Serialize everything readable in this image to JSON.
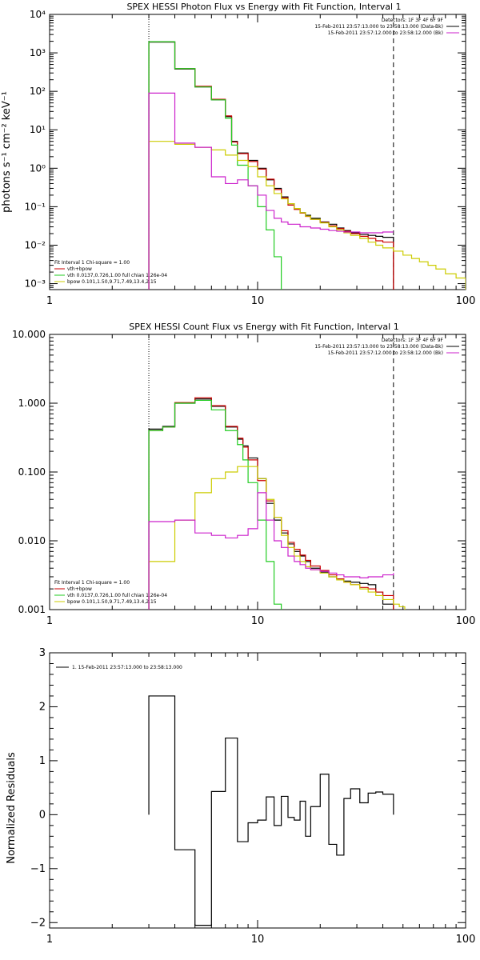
{
  "chart_data": [
    {
      "type": "line",
      "title": "SPEX HESSI Photon Flux vs Energy with Fit Function, Interval 1",
      "ylabel": "photons s⁻¹ cm⁻² keV⁻¹",
      "xlabel": "",
      "xscale": "log",
      "yscale": "log",
      "xlim": [
        1,
        100
      ],
      "ylim": [
        0.0007,
        10000
      ],
      "x_tick_labels": [
        "1",
        "10",
        "100"
      ],
      "y_ticks": [
        0.001,
        0.01,
        0.1,
        1,
        10,
        100,
        1000,
        10000
      ],
      "y_tick_labels": [
        "10⁻³",
        "10⁻²",
        "10⁻¹",
        "10⁰",
        "10¹",
        "10²",
        "10³",
        "10⁴"
      ],
      "vlines": [
        {
          "x": 3,
          "style": "dotted"
        },
        {
          "x": 45,
          "style": "dashed"
        }
      ],
      "legend_top": {
        "position": "top-right",
        "entries": [
          {
            "text": "Detectors: 1F 3F 4F 6F 9F",
            "color": ""
          },
          {
            "text": "15-Feb-2011 23:57:13.000 to 23:58:13.000 (Data-Bk)",
            "color": "#000000"
          },
          {
            "text": "15-Feb-2011 23:57:12.000 to 23:58:12.000 (Bk)",
            "color": "#cc22cc"
          }
        ]
      },
      "legend_bottom": {
        "position": "bottom-left",
        "entries": [
          {
            "text": "Fit Interval 1     Chi-square = 1.00",
            "color": "#000000"
          },
          {
            "text": "vth+bpow",
            "color": "#cc0000"
          },
          {
            "text": "vth 0.0137,0.726,1.00  full chian 1.26e-04",
            "color": "#22cc22"
          },
          {
            "text": "bpow 0.101,1.50,9.71,7.49,13.4,2.15",
            "color": "#cccc00"
          }
        ]
      },
      "series": [
        {
          "color": "#000000",
          "edges": [
            3,
            4,
            5,
            6,
            7,
            7.5,
            8,
            9,
            10,
            11,
            12,
            13,
            14,
            15,
            16,
            17,
            18,
            20,
            22,
            24,
            26,
            28,
            31,
            34,
            37,
            40,
            45
          ],
          "values": [
            1900,
            380,
            130,
            60,
            22,
            5,
            2.5,
            1.6,
            1.0,
            0.5,
            0.3,
            0.18,
            0.12,
            0.09,
            0.07,
            0.06,
            0.05,
            0.04,
            0.035,
            0.028,
            0.024,
            0.021,
            0.019,
            0.018,
            0.017,
            0.016
          ]
        },
        {
          "color": "#cc0000",
          "edges": [
            3,
            4,
            5,
            6,
            7,
            7.5,
            8,
            9,
            10,
            11,
            12,
            13,
            14,
            15,
            16,
            17,
            18,
            20,
            22,
            24,
            26,
            28,
            31,
            34,
            37,
            40,
            45
          ],
          "values": [
            1950,
            390,
            135,
            62,
            23,
            4.8,
            2.4,
            1.5,
            0.95,
            0.52,
            0.28,
            0.17,
            0.11,
            0.085,
            0.068,
            0.056,
            0.047,
            0.039,
            0.032,
            0.027,
            0.023,
            0.02,
            0.017,
            0.015,
            0.013,
            0.012
          ]
        },
        {
          "color": "#22cc22",
          "edges": [
            3,
            4,
            5,
            6,
            7,
            7.5,
            8,
            9,
            10,
            11,
            12,
            13
          ],
          "values": [
            1950,
            390,
            130,
            60,
            20,
            4,
            1.2,
            0.35,
            0.1,
            0.025,
            0.005
          ]
        },
        {
          "color": "#cccc00",
          "edges": [
            3,
            4,
            5,
            6,
            7,
            8,
            9,
            10,
            11,
            12,
            13,
            14,
            15,
            16,
            17,
            18,
            20,
            22,
            24,
            26,
            28,
            31,
            34,
            37,
            40,
            45,
            50,
            55,
            60,
            66,
            72,
            80,
            90,
            100
          ],
          "values": [
            5,
            4.2,
            3.5,
            3,
            2.2,
            1.6,
            1.1,
            0.6,
            0.35,
            0.22,
            0.16,
            0.12,
            0.09,
            0.07,
            0.057,
            0.047,
            0.038,
            0.03,
            0.025,
            0.021,
            0.018,
            0.015,
            0.012,
            0.01,
            0.0085,
            0.007,
            0.0055,
            0.0045,
            0.0037,
            0.003,
            0.0024,
            0.0018,
            0.0014
          ]
        },
        {
          "color": "#cc22cc",
          "edges": [
            3,
            4,
            5,
            6,
            7,
            8,
            9,
            10,
            11,
            12,
            13,
            14,
            15,
            16,
            17,
            18,
            20,
            22,
            24,
            26,
            28,
            31,
            34,
            37,
            40,
            45
          ],
          "values": [
            90,
            4.5,
            3.5,
            0.6,
            0.4,
            0.5,
            0.35,
            0.2,
            0.08,
            0.05,
            0.04,
            0.035,
            0.035,
            0.03,
            0.03,
            0.028,
            0.026,
            0.024,
            0.023,
            0.022,
            0.022,
            0.021,
            0.021,
            0.021,
            0.022,
            0.022
          ]
        }
      ]
    },
    {
      "type": "line",
      "title": "SPEX HESSI Count Flux vs Energy with Fit Function, Interval 1",
      "ylabel": "",
      "xlabel": "",
      "xscale": "log",
      "yscale": "log",
      "xlim": [
        1,
        100
      ],
      "ylim": [
        0.001,
        10
      ],
      "x_tick_labels": [
        "1",
        "10",
        "100"
      ],
      "y_ticks": [
        0.001,
        0.01,
        0.1,
        1,
        10
      ],
      "y_tick_labels": [
        "0.001",
        "0.010",
        "0.100",
        "1.000",
        "10.000"
      ],
      "vlines": [
        {
          "x": 3,
          "style": "dotted"
        },
        {
          "x": 45,
          "style": "dashed"
        }
      ],
      "legend_top": {
        "position": "top-right",
        "entries": [
          {
            "text": "Detectors: 1F 3F 4F 6F 9F",
            "color": ""
          },
          {
            "text": "15-Feb-2011 23:57:13.000 to 23:58:13.000 (Data-Bk)",
            "color": "#000000"
          },
          {
            "text": "15-Feb-2011 23:57:12.000 to 23:58:12.000 (Bk)",
            "color": "#cc22cc"
          }
        ]
      },
      "legend_bottom": {
        "position": "bottom-left",
        "entries": [
          {
            "text": "Fit Interval 1     Chi-square = 1.00",
            "color": "#000000"
          },
          {
            "text": "vth+bpow",
            "color": "#cc0000"
          },
          {
            "text": "vth 0.0137,0.726,1.00  full chian 1.26e-04",
            "color": "#22cc22"
          },
          {
            "text": "bpow 0.101,1.50,9.71,7.49,13.4,2.15",
            "color": "#cccc00"
          }
        ]
      },
      "series": [
        {
          "color": "#000000",
          "edges": [
            3,
            3.5,
            4,
            5,
            6,
            7,
            8,
            8.5,
            9,
            10,
            11,
            12,
            13,
            14,
            15,
            16,
            17,
            18,
            20,
            22,
            24,
            26,
            28,
            31,
            34,
            37,
            40,
            45
          ],
          "values": [
            0.42,
            0.46,
            1.0,
            1.15,
            0.9,
            0.45,
            0.3,
            0.24,
            0.16,
            0.08,
            0.035,
            0.02,
            0.013,
            0.009,
            0.007,
            0.006,
            0.005,
            0.004,
            0.0035,
            0.003,
            0.0028,
            0.0026,
            0.0025,
            0.0024,
            0.0023,
            0.0018,
            0.0012
          ]
        },
        {
          "color": "#cc0000",
          "edges": [
            3,
            3.5,
            4,
            5,
            6,
            7,
            8,
            8.5,
            9,
            10,
            11,
            12,
            13,
            14,
            15,
            16,
            17,
            18,
            20,
            22,
            24,
            26,
            28,
            31,
            34,
            37,
            40,
            45
          ],
          "values": [
            0.4,
            0.45,
            1.02,
            1.2,
            0.92,
            0.46,
            0.31,
            0.23,
            0.15,
            0.075,
            0.038,
            0.022,
            0.014,
            0.0095,
            0.0075,
            0.0062,
            0.0052,
            0.0043,
            0.0037,
            0.0032,
            0.0028,
            0.0025,
            0.0023,
            0.0021,
            0.002,
            0.0018,
            0.0016
          ]
        },
        {
          "color": "#22cc22",
          "edges": [
            3,
            3.5,
            4,
            5,
            6,
            7,
            8,
            8.5,
            9,
            10,
            11,
            12,
            13
          ],
          "values": [
            0.4,
            0.45,
            1.0,
            1.1,
            0.8,
            0.4,
            0.25,
            0.15,
            0.07,
            0.02,
            0.005,
            0.0012
          ]
        },
        {
          "color": "#cccc00",
          "edges": [
            3,
            4,
            5,
            6,
            7,
            8,
            9,
            10,
            11,
            12,
            13,
            14,
            15,
            16,
            17,
            18,
            20,
            22,
            24,
            26,
            28,
            31,
            34,
            37,
            40,
            45,
            48,
            51
          ],
          "values": [
            0.005,
            0.02,
            0.05,
            0.08,
            0.1,
            0.12,
            0.12,
            0.08,
            0.04,
            0.022,
            0.012,
            0.008,
            0.006,
            0.005,
            0.0042,
            0.0038,
            0.0034,
            0.003,
            0.0027,
            0.0025,
            0.0023,
            0.002,
            0.0018,
            0.0016,
            0.0014,
            0.0012,
            0.0011
          ]
        },
        {
          "color": "#cc22cc",
          "edges": [
            3,
            4,
            5,
            6,
            7,
            8,
            9,
            10,
            11,
            12,
            13,
            14,
            15,
            16,
            17,
            18,
            20,
            22,
            24,
            26,
            28,
            31,
            34,
            37,
            40,
            45
          ],
          "values": [
            0.019,
            0.02,
            0.013,
            0.012,
            0.011,
            0.012,
            0.015,
            0.05,
            0.02,
            0.01,
            0.008,
            0.006,
            0.005,
            0.0045,
            0.004,
            0.0038,
            0.0036,
            0.0034,
            0.0032,
            0.003,
            0.003,
            0.0029,
            0.003,
            0.003,
            0.0032,
            0.0034
          ]
        }
      ]
    },
    {
      "type": "line",
      "title": "",
      "ylabel": "Normalized Residuals",
      "xlabel": "",
      "xscale": "log",
      "yscale": "linear",
      "xlim": [
        1,
        100
      ],
      "ylim": [
        -2.1,
        3
      ],
      "x_tick_labels": [
        "1",
        "10",
        "100"
      ],
      "y_ticks": [
        -2,
        -1,
        0,
        1,
        2,
        3
      ],
      "y_tick_labels": [
        "−2",
        "−1",
        "0",
        "1",
        "2",
        "3"
      ],
      "legend_top": {
        "position": "top-left",
        "entries": [
          {
            "text": "1. 15-Feb-2011 23:57:13.000 to 23:58:13.000",
            "color": "#000000"
          }
        ]
      },
      "series": [
        {
          "color": "#000000",
          "edges": [
            3,
            4,
            5,
            6,
            7,
            8,
            9,
            10,
            11,
            12,
            13,
            14,
            15,
            16,
            17,
            18,
            20,
            22,
            24,
            26,
            28,
            31,
            34,
            37,
            40,
            45
          ],
          "values": [
            2.2,
            -0.65,
            -2.05,
            0.43,
            1.42,
            -0.5,
            -0.15,
            -0.1,
            0.33,
            -0.2,
            0.34,
            -0.05,
            -0.1,
            0.25,
            -0.4,
            0.15,
            0.75,
            -0.55,
            -0.75,
            0.3,
            0.48,
            0.22,
            0.4,
            0.42,
            0.38
          ]
        }
      ]
    }
  ]
}
